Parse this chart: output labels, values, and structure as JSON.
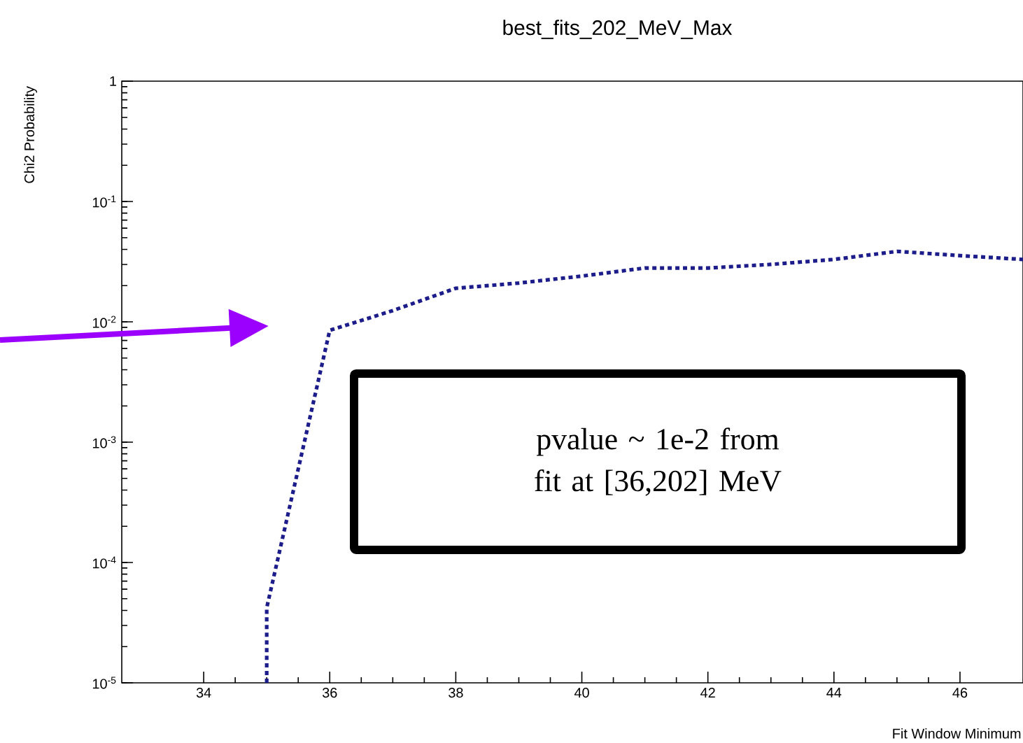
{
  "chart_data": {
    "type": "line",
    "title": "best_fits_202_MeV_Max",
    "xlabel": "Fit Window Minimum",
    "ylabel": "Chi2 Probability",
    "annotations": [
      "pvalue ~ 1e-2 from fit at [36,202] MeV"
    ],
    "log": "y",
    "line_style": "dotted",
    "color": "#1c1c8a",
    "x": [
      35,
      35,
      36,
      37,
      38,
      39,
      40,
      41,
      42,
      43,
      44,
      45,
      46,
      47
    ],
    "values": [
      1e-05,
      4.2e-05,
      0.0085,
      0.0124,
      0.019,
      0.021,
      0.024,
      0.028,
      0.028,
      0.03,
      0.033,
      0.0385,
      0.0355,
      0.033
    ],
    "xlim": [
      32.7,
      47
    ],
    "ylim": [
      1e-05,
      1
    ],
    "xticks": [
      34,
      36,
      38,
      40,
      42,
      44,
      46
    ],
    "yticks": [
      {
        "value": 1e-05,
        "label": "10$^{-5}$"
      },
      {
        "value": 0.0001,
        "label": "10$^{-4}$"
      },
      {
        "value": 0.001,
        "label": "10$^{-3}$"
      },
      {
        "value": 0.01,
        "label": "10$^{-2}$"
      },
      {
        "value": 0.1,
        "label": "10$^{-1}$"
      },
      1
    ]
  }
}
